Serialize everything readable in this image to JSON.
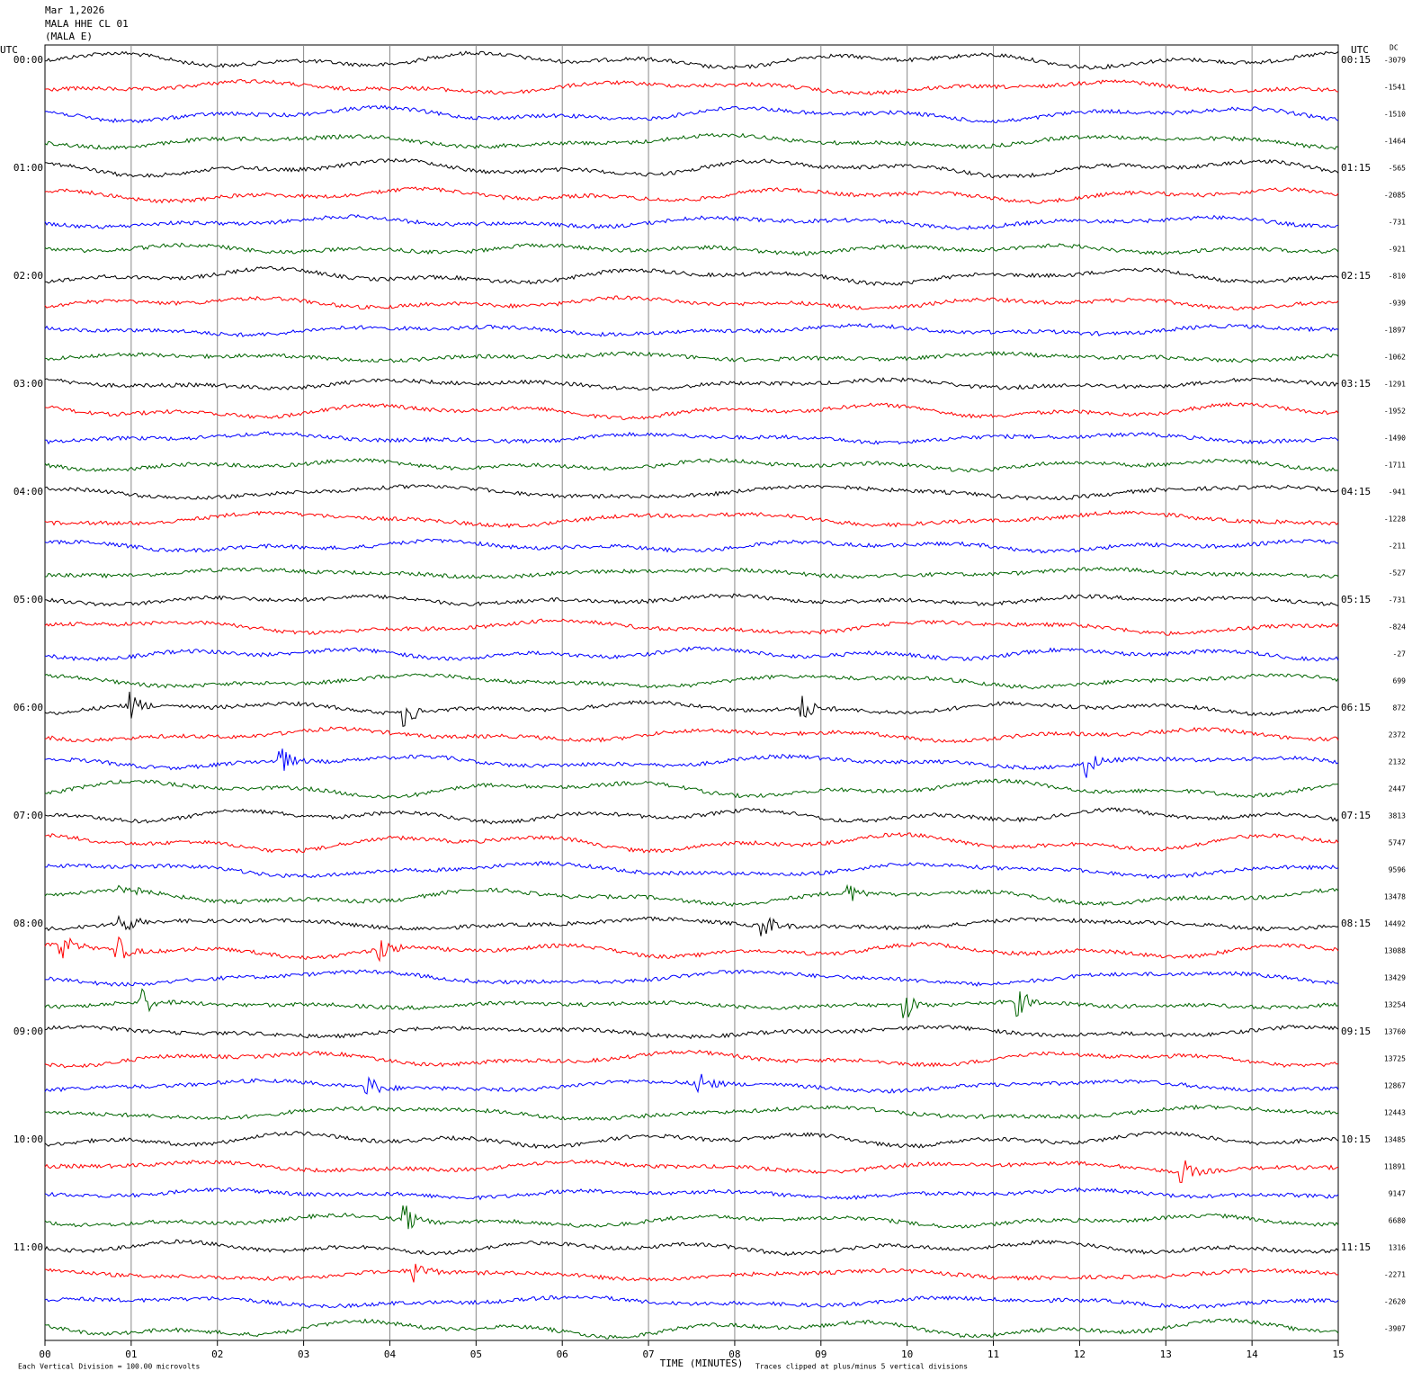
{
  "header": {
    "date": "Mar 1,2026",
    "station": "MALA HHE CL 01",
    "channel": "(MALA E)"
  },
  "left_axis": {
    "title": "UTC",
    "labels": [
      "00:00",
      "01:00",
      "02:00",
      "03:00",
      "04:00",
      "05:00",
      "06:00",
      "07:00",
      "08:00",
      "09:00",
      "10:00",
      "11:00"
    ]
  },
  "right_axis": {
    "title": "UTC",
    "labels": [
      "00:15",
      "01:15",
      "02:15",
      "03:15",
      "04:15",
      "05:15",
      "06:15",
      "07:15",
      "08:15",
      "09:15",
      "10:15",
      "11:15"
    ]
  },
  "dc": {
    "title": "DC",
    "values": [
      -3079,
      -1541,
      -1510,
      -1464,
      -565,
      -2085,
      -731,
      -921,
      -810,
      -939,
      -1897,
      -1062,
      -1291,
      -1952,
      -1490,
      -1711,
      -941,
      -1228,
      -211,
      -527,
      -731,
      -824,
      -27,
      699,
      872,
      2372,
      2132,
      2447,
      3813,
      5747,
      9596,
      13478,
      14492,
      13088,
      13429,
      13254,
      13760,
      13725,
      12867,
      12443,
      13485,
      11891,
      9147,
      6680,
      1316,
      -2271,
      -2620,
      -3907
    ]
  },
  "x_axis": {
    "title": "TIME (MINUTES)",
    "labels": [
      "00",
      "01",
      "02",
      "03",
      "04",
      "05",
      "06",
      "07",
      "08",
      "09",
      "10",
      "11",
      "12",
      "13",
      "14",
      "15"
    ]
  },
  "footer": {
    "scale": "Each Vertical Division =  100.00 microvolts",
    "clip": "Traces clipped at plus/minus 5 vertical divisions"
  },
  "trace_colors": [
    "#000000",
    "#ff0000",
    "#0000ff",
    "#006400"
  ]
}
